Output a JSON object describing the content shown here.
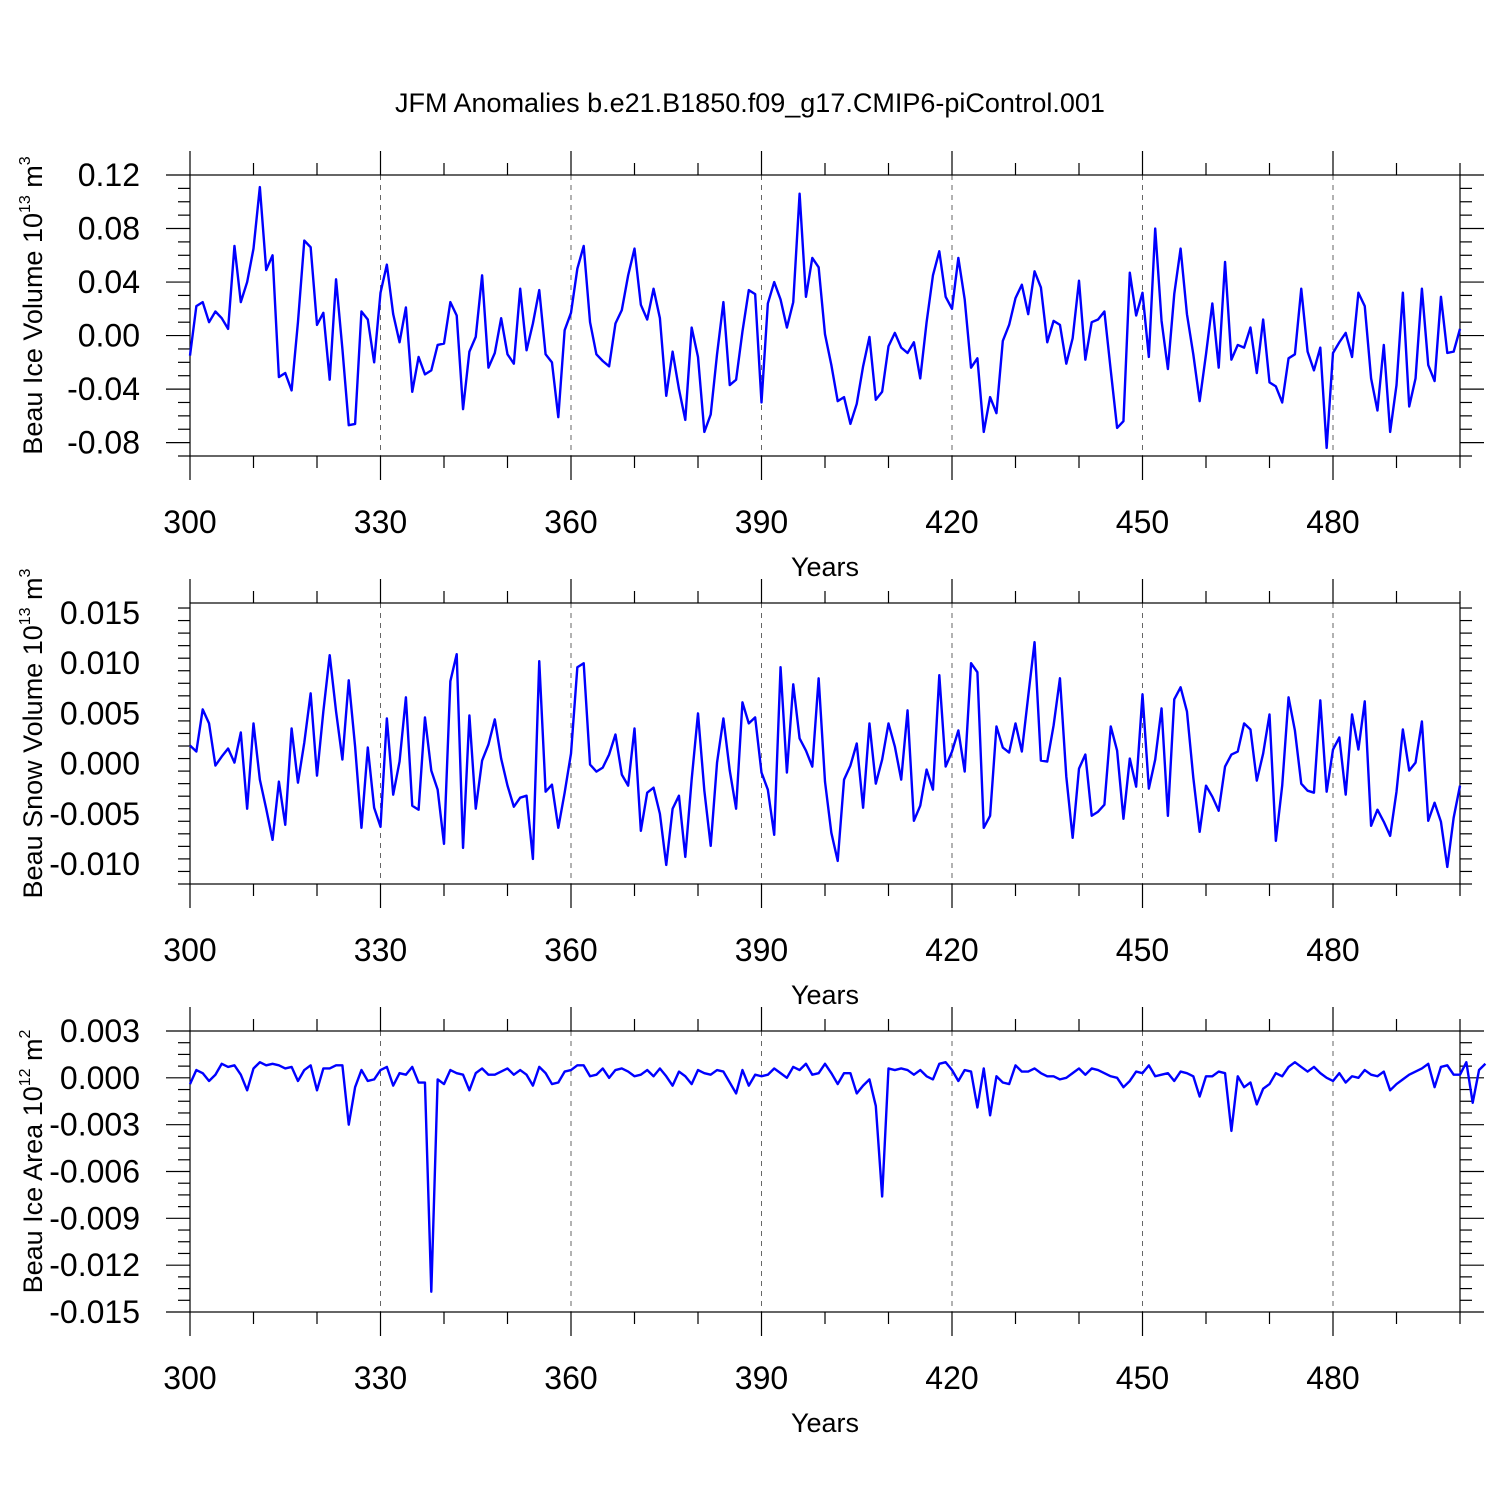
{
  "title": "JFM Anomalies b.e21.B1850.f09_g17.CMIP6-piControl.001",
  "line_color": "#0000ff",
  "chart_data": [
    {
      "type": "line",
      "id": "ice-volume",
      "ylabel": "Beau Ice Volume 10",
      "ylabel_exp": "13",
      "ylabel_unit": " m",
      "ylabel_unit_exp": "3",
      "xlabel": "Years",
      "xlim": [
        300,
        500
      ],
      "ylim": [
        -0.09,
        0.12
      ],
      "xticks": [
        300,
        330,
        360,
        390,
        420,
        450,
        480
      ],
      "xtick_labels": [
        "300",
        "330",
        "360",
        "390",
        "420",
        "450",
        "480"
      ],
      "yticks": [
        -0.08,
        -0.04,
        0.0,
        0.04,
        0.08,
        0.12
      ],
      "ytick_labels": [
        "-0.08",
        "-0.04",
        "0.00",
        "0.04",
        "0.08",
        "0.12"
      ],
      "x_start": 300,
      "values": [
        -0.015,
        0.022,
        0.025,
        0.01,
        0.018,
        0.013,
        0.005,
        0.067,
        0.025,
        0.04,
        0.065,
        0.111,
        0.049,
        0.06,
        -0.031,
        -0.028,
        -0.041,
        0.01,
        0.071,
        0.066,
        0.008,
        0.017,
        -0.033,
        0.042,
        -0.01,
        -0.067,
        -0.066,
        0.018,
        0.012,
        -0.02,
        0.032,
        0.053,
        0.016,
        -0.005,
        0.021,
        -0.042,
        -0.016,
        -0.029,
        -0.026,
        -0.007,
        -0.006,
        0.025,
        0.015,
        -0.055,
        -0.012,
        -0.001,
        0.045,
        -0.024,
        -0.013,
        0.013,
        -0.014,
        -0.021,
        0.035,
        -0.011,
        0.009,
        0.034,
        -0.014,
        -0.02,
        -0.061,
        0.004,
        0.017,
        0.05,
        0.067,
        0.01,
        -0.014,
        -0.019,
        -0.023,
        0.009,
        0.019,
        0.045,
        0.065,
        0.023,
        0.012,
        0.035,
        0.013,
        -0.045,
        -0.012,
        -0.04,
        -0.063,
        0.006,
        -0.016,
        -0.072,
        -0.059,
        -0.014,
        0.025,
        -0.037,
        -0.033,
        0.003,
        0.034,
        0.031,
        -0.05,
        0.024,
        0.04,
        0.027,
        0.006,
        0.025,
        0.106,
        0.029,
        0.058,
        0.051,
        0.001,
        -0.022,
        -0.049,
        -0.046,
        -0.066,
        -0.051,
        -0.023,
        -0.001,
        -0.048,
        -0.042,
        -0.008,
        0.002,
        -0.009,
        -0.013,
        -0.005,
        -0.032,
        0.01,
        0.045,
        0.063,
        0.029,
        0.02,
        0.058,
        0.027,
        -0.024,
        -0.017,
        -0.072,
        -0.046,
        -0.058,
        -0.004,
        0.008,
        0.028,
        0.038,
        0.016,
        0.048,
        0.036,
        -0.005,
        0.011,
        0.008,
        -0.021,
        -0.002,
        0.041,
        -0.018,
        0.01,
        0.012,
        0.018,
        -0.026,
        -0.069,
        -0.064,
        0.047,
        0.015,
        0.032,
        -0.016,
        0.08,
        0.011,
        -0.025,
        0.031,
        0.065,
        0.016,
        -0.014,
        -0.049,
        -0.014,
        0.024,
        -0.024,
        0.055,
        -0.018,
        -0.007,
        -0.009,
        0.006,
        -0.028,
        0.012,
        -0.035,
        -0.038,
        -0.05,
        -0.017,
        -0.014,
        0.035,
        -0.012,
        -0.026,
        -0.009,
        -0.084,
        -0.013,
        -0.005,
        0.002,
        -0.016,
        0.032,
        0.022,
        -0.032,
        -0.056,
        -0.007,
        -0.072,
        -0.037,
        0.032,
        -0.053,
        -0.032,
        0.035,
        -0.022,
        -0.034,
        0.029,
        -0.013,
        -0.012,
        0.005
      ]
    },
    {
      "type": "line",
      "id": "snow-volume",
      "ylabel": "Beau Snow Volume 10",
      "ylabel_exp": "13",
      "ylabel_unit": " m",
      "ylabel_unit_exp": "3",
      "xlabel": "Years",
      "xlim": [
        300,
        500
      ],
      "ylim": [
        -0.012,
        0.016
      ],
      "xticks": [
        300,
        330,
        360,
        390,
        420,
        450,
        480
      ],
      "xtick_labels": [
        "300",
        "330",
        "360",
        "390",
        "420",
        "450",
        "480"
      ],
      "yticks": [
        -0.01,
        -0.005,
        0.0,
        0.005,
        0.01,
        0.015
      ],
      "ytick_labels": [
        "-0.010",
        "-0.005",
        "0.000",
        "0.005",
        "0.010",
        "0.015"
      ],
      "x_start": 300,
      "values": [
        0.0018,
        0.0012,
        0.0054,
        0.004,
        -0.0002,
        0.0007,
        0.0015,
        0.0001,
        0.0031,
        -0.0045,
        0.004,
        -0.0016,
        -0.0045,
        -0.0076,
        -0.0018,
        -0.0061,
        0.0035,
        -0.0019,
        0.0021,
        0.007,
        -0.0012,
        0.0052,
        0.0108,
        0.0052,
        0.0004,
        0.0083,
        0.0017,
        -0.0064,
        0.0016,
        -0.0044,
        -0.0063,
        0.0045,
        -0.0031,
        0.0002,
        0.0066,
        -0.0042,
        -0.0046,
        0.0046,
        -0.0007,
        -0.0026,
        -0.008,
        0.0082,
        0.0109,
        -0.0084,
        0.0048,
        -0.0045,
        0.0003,
        0.0019,
        0.0044,
        0.0005,
        -0.0022,
        -0.0043,
        -0.0034,
        -0.0032,
        -0.0095,
        0.0102,
        -0.0028,
        -0.0021,
        -0.0064,
        -0.0029,
        0.001,
        0.0096,
        0.01,
        -0.0001,
        -0.0008,
        -0.0004,
        0.0009,
        0.0029,
        -0.0011,
        -0.0022,
        0.0035,
        -0.0067,
        -0.0029,
        -0.0024,
        -0.005,
        -0.0101,
        -0.0045,
        -0.0032,
        -0.0093,
        -0.0016,
        0.005,
        -0.0027,
        -0.0082,
        0.0001,
        0.0045,
        -0.0007,
        -0.0045,
        0.0061,
        0.004,
        0.0046,
        -0.0009,
        -0.0026,
        -0.0071,
        0.0096,
        -0.0009,
        0.0079,
        0.0025,
        0.0013,
        -0.0003,
        0.0085,
        -0.0018,
        -0.0069,
        -0.0097,
        -0.0016,
        -0.0002,
        0.002,
        -0.0044,
        0.004,
        -0.002,
        0.0004,
        0.004,
        0.0017,
        -0.0016,
        0.0053,
        -0.0057,
        -0.0042,
        -0.0006,
        -0.0026,
        0.0088,
        -0.0003,
        0.0012,
        0.0033,
        -0.0008,
        0.01,
        0.0091,
        -0.0064,
        -0.0052,
        0.0037,
        0.0016,
        0.0011,
        0.004,
        0.0012,
        0.0067,
        0.0121,
        0.0003,
        0.0002,
        0.0038,
        0.0085,
        -0.0013,
        -0.0074,
        -0.0005,
        0.0009,
        -0.0052,
        -0.0048,
        -0.0041,
        0.0037,
        0.0013,
        -0.0055,
        0.0005,
        -0.0023,
        0.0069,
        -0.0025,
        0.0004,
        0.0055,
        -0.0052,
        0.0064,
        0.0076,
        0.0052,
        -0.0014,
        -0.0068,
        -0.0022,
        -0.0033,
        -0.0047,
        -0.0003,
        0.0009,
        0.0012,
        0.004,
        0.0034,
        -0.0017,
        0.001,
        0.0049,
        -0.0077,
        -0.0022,
        0.0066,
        0.0033,
        -0.002,
        -0.0027,
        -0.0029,
        0.0063,
        -0.0028,
        0.0014,
        0.0026,
        -0.0031,
        0.0049,
        0.0014,
        0.0062,
        -0.0062,
        -0.0046,
        -0.0058,
        -0.0072,
        -0.0028,
        0.0034,
        -0.0007,
        0.0001,
        0.0042,
        -0.0057,
        -0.0039,
        -0.0058,
        -0.0103,
        -0.0054,
        -0.0022
      ]
    },
    {
      "type": "line",
      "id": "ice-area",
      "ylabel": "Beau Ice Area 10",
      "ylabel_exp": "12",
      "ylabel_unit": " m",
      "ylabel_unit_exp": "2",
      "xlabel": "Years",
      "xlim": [
        300,
        500
      ],
      "ylim": [
        -0.015,
        0.003
      ],
      "xticks": [
        300,
        330,
        360,
        390,
        420,
        450,
        480
      ],
      "xtick_labels": [
        "300",
        "330",
        "360",
        "390",
        "420",
        "450",
        "480"
      ],
      "yticks": [
        -0.015,
        -0.012,
        -0.009,
        -0.006,
        -0.003,
        0.0,
        0.003
      ],
      "ytick_labels": [
        "-0.015",
        "-0.012",
        "-0.009",
        "-0.006",
        "-0.003",
        "0.000",
        "0.003"
      ],
      "x_start": 300,
      "values": [
        -0.0004,
        0.0005,
        0.0003,
        -0.0002,
        0.0002,
        0.0009,
        0.0007,
        0.0008,
        0.0002,
        -0.0008,
        0.0006,
        0.001,
        0.0008,
        0.0009,
        0.0008,
        0.0006,
        0.0007,
        -0.0002,
        0.0005,
        0.0008,
        -0.0008,
        0.0006,
        0.0006,
        0.0008,
        0.0008,
        -0.003,
        -0.0006,
        0.0005,
        -0.0002,
        -0.0001,
        0.0005,
        0.0007,
        -0.0005,
        0.0003,
        0.0002,
        0.0007,
        -0.0003,
        -0.0003,
        -0.0137,
        -0.0001,
        -0.0004,
        0.0005,
        0.0003,
        0.0002,
        -0.0008,
        0.0003,
        0.0006,
        0.0002,
        0.0002,
        0.0004,
        0.0006,
        0.0002,
        0.0005,
        0.0002,
        -0.0005,
        0.0007,
        0.0003,
        -0.0004,
        -0.0003,
        0.0004,
        0.0005,
        0.0008,
        0.0008,
        0.0001,
        0.0002,
        0.0006,
        0.0,
        0.0005,
        0.0006,
        0.0004,
        0.0001,
        0.0002,
        0.0005,
        0.0001,
        0.0006,
        0.0001,
        -0.0005,
        0.0004,
        0.0001,
        -0.0004,
        0.0005,
        0.0003,
        0.0002,
        0.0005,
        0.0004,
        -0.0003,
        -0.001,
        0.0005,
        -0.0005,
        0.0002,
        0.0001,
        0.0002,
        0.0006,
        0.0003,
        0.0,
        0.0007,
        0.0005,
        0.0009,
        0.0002,
        0.0003,
        0.0009,
        0.0003,
        -0.0004,
        0.0003,
        0.0003,
        -0.001,
        -0.0005,
        -0.0001,
        -0.0018,
        -0.0076,
        0.0006,
        0.0005,
        0.0006,
        0.0005,
        0.0002,
        0.0005,
        0.0001,
        -0.0001,
        0.0009,
        0.001,
        0.0005,
        -0.0002,
        0.0005,
        0.0004,
        -0.0019,
        0.0006,
        -0.0024,
        0.0001,
        -0.0003,
        -0.0004,
        0.0008,
        0.0004,
        0.0004,
        0.0006,
        0.0003,
        0.0001,
        0.0001,
        -0.0001,
        0.0,
        0.0003,
        0.0006,
        0.0002,
        0.0006,
        0.0005,
        0.0003,
        0.0001,
        0.0,
        -0.0006,
        -0.0002,
        0.0004,
        0.0003,
        0.0008,
        0.0001,
        0.0002,
        0.0003,
        -0.0002,
        0.0004,
        0.0003,
        0.0001,
        -0.0012,
        0.0001,
        0.0001,
        0.0004,
        0.0003,
        -0.0034,
        0.0001,
        -0.0006,
        -0.0003,
        -0.0017,
        -0.0007,
        -0.0004,
        0.0003,
        0.0001,
        0.0007,
        0.001,
        0.0007,
        0.0004,
        0.0007,
        0.0003,
        0.0,
        -0.0002,
        0.0003,
        -0.0003,
        0.0001,
        0.0,
        0.0005,
        0.0002,
        0.0001,
        0.0004,
        -0.0008,
        -0.0004,
        -0.0001,
        0.0002,
        0.0004,
        0.0006,
        0.0009,
        -0.0006,
        0.0007,
        0.0008,
        0.0002,
        0.0002,
        0.001,
        -0.0016,
        0.0005,
        0.0009
      ]
    }
  ]
}
